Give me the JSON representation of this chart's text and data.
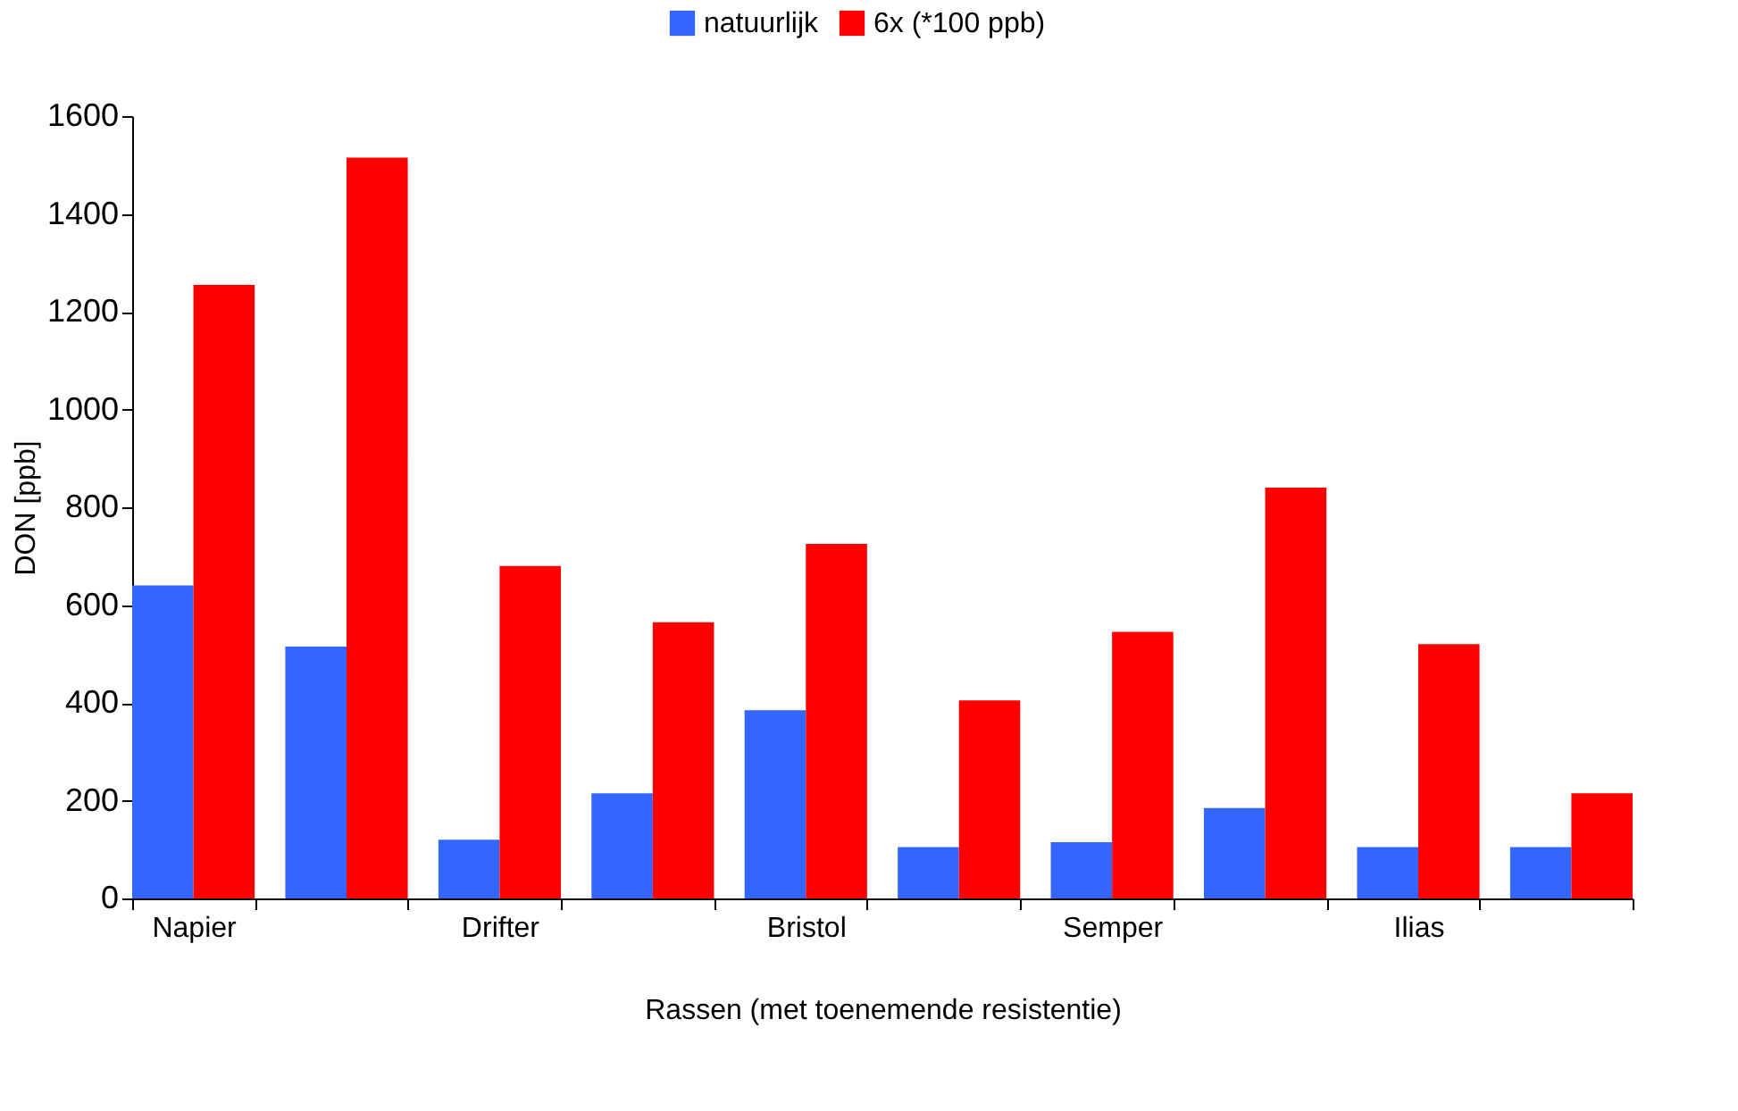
{
  "chart_data": {
    "type": "bar",
    "categories": [
      "Napier",
      null,
      "Drifter",
      null,
      "Bristol",
      null,
      "Semper",
      null,
      "Ilias",
      null
    ],
    "series": [
      {
        "name": "natuurlijk",
        "color": "#3366ff",
        "values": [
          640,
          515,
          120,
          215,
          385,
          105,
          115,
          185,
          105,
          105
        ]
      },
      {
        "name": "6x (*100 ppb)",
        "color": "#ff0000",
        "values": [
          1255,
          1515,
          680,
          565,
          725,
          405,
          545,
          840,
          520,
          215
        ]
      }
    ],
    "xlabel": "Rassen (met toenemende resistentie)",
    "ylabel": "DON [ppb]",
    "ylim": [
      0,
      1600
    ],
    "yticks": [
      0,
      200,
      400,
      600,
      800,
      1000,
      1200,
      1400,
      1600
    ],
    "grid": false,
    "legend": "top"
  }
}
